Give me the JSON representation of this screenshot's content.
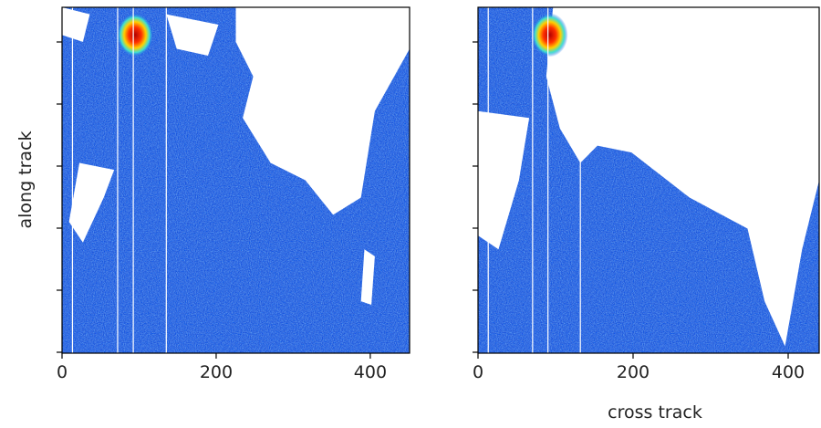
{
  "chart_data": [
    {
      "type": "image",
      "ylabel": "along track",
      "xlim": [
        0,
        451
      ],
      "xticks": [
        0,
        200,
        400
      ]
    },
    {
      "type": "image",
      "xlabel": "cross track",
      "xlim": [
        0,
        440
      ],
      "xticks": [
        0,
        200,
        400
      ]
    }
  ]
}
